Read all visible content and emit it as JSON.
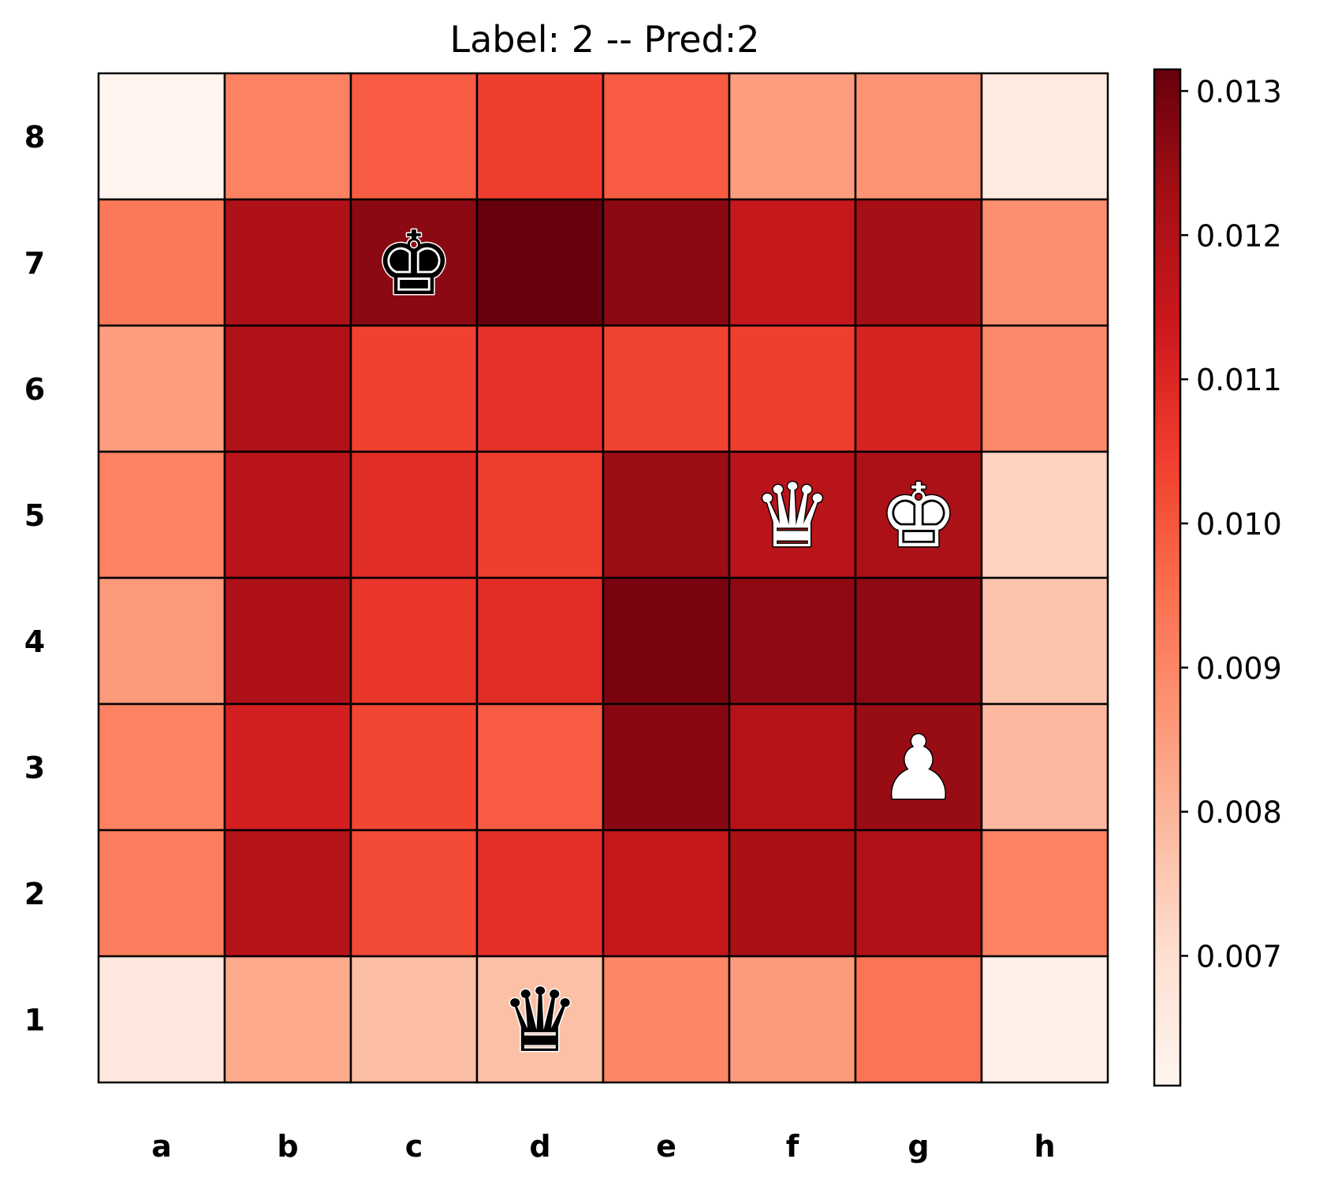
{
  "chart_data": {
    "type": "heatmap",
    "title": "Label: 2 -- Pred:2",
    "x_categories": [
      "a",
      "b",
      "c",
      "d",
      "e",
      "f",
      "g",
      "h"
    ],
    "y_categories": [
      "8",
      "7",
      "6",
      "5",
      "4",
      "3",
      "2",
      "1"
    ],
    "values": [
      [
        0.00615,
        0.0091,
        0.0099,
        0.01045,
        0.0099,
        0.0085,
        0.0087,
        0.00655
      ],
      [
        0.0093,
        0.01205,
        0.01265,
        0.01315,
        0.01265,
        0.0115,
        0.01225,
        0.0088
      ],
      [
        0.0085,
        0.012,
        0.0104,
        0.01075,
        0.01035,
        0.01045,
        0.0111,
        0.00895
      ],
      [
        0.0091,
        0.0118,
        0.01085,
        0.01045,
        0.0124,
        0.0118,
        0.0121,
        0.0073
      ],
      [
        0.0086,
        0.01205,
        0.01065,
        0.01085,
        0.0129,
        0.0126,
        0.0126,
        0.00765
      ],
      [
        0.0091,
        0.0112,
        0.0103,
        0.0099,
        0.0127,
        0.0119,
        0.01245,
        0.0079
      ],
      [
        0.0092,
        0.0119,
        0.0102,
        0.0108,
        0.0115,
        0.0122,
        0.012,
        0.0091
      ],
      [
        0.0067,
        0.00825,
        0.0078,
        0.00775,
        0.009,
        0.00855,
        0.0094,
        0.0063
      ]
    ],
    "colormap": "Reds",
    "colorbar": {
      "range": [
        0.0061,
        0.01315
      ],
      "ticks": [
        "0.007",
        "0.008",
        "0.009",
        "0.010",
        "0.011",
        "0.012",
        "0.013"
      ]
    },
    "pieces": [
      {
        "square": "c7",
        "symbol": "♚",
        "name": "black-king",
        "side": "black"
      },
      {
        "square": "f5",
        "symbol": "♛",
        "name": "white-queen",
        "side": "white"
      },
      {
        "square": "g5",
        "symbol": "♚",
        "name": "white-king",
        "side": "white"
      },
      {
        "square": "g3",
        "symbol": "♟",
        "name": "white-pawn",
        "side": "white"
      },
      {
        "square": "d1",
        "symbol": "♛",
        "name": "black-queen",
        "side": "black"
      }
    ]
  }
}
